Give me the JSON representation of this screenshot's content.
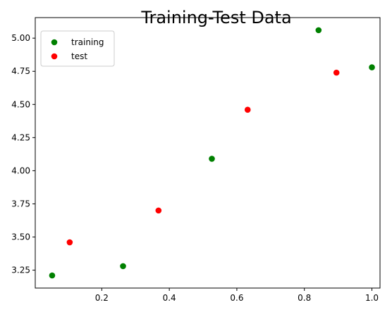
{
  "chart_data": {
    "type": "scatter",
    "title": "Training-Test Data",
    "xlabel": "",
    "ylabel": "",
    "xlim": [
      0.003,
      1.024
    ],
    "ylim": [
      3.115,
      5.155
    ],
    "xticks": [
      0.2,
      0.4,
      0.6,
      0.8,
      1.0
    ],
    "xtick_labels": [
      "0.2",
      "0.4",
      "0.6",
      "0.8",
      "1.0"
    ],
    "yticks": [
      3.25,
      3.5,
      3.75,
      4.0,
      4.25,
      4.5,
      4.75,
      5.0
    ],
    "ytick_labels": [
      "3.25",
      "3.50",
      "3.75",
      "4.00",
      "4.25",
      "4.50",
      "4.75",
      "5.00"
    ],
    "grid": false,
    "legend_position": "top-left",
    "series": [
      {
        "name": "training",
        "color": "#008000",
        "x": [
          0.053,
          0.263,
          0.526,
          0.842,
          1.0
        ],
        "y": [
          3.21,
          3.28,
          4.09,
          5.06,
          4.78
        ]
      },
      {
        "name": "test",
        "color": "#ff0000",
        "x": [
          0.105,
          0.368,
          0.632,
          0.895
        ],
        "y": [
          3.46,
          3.7,
          4.46,
          4.74
        ]
      }
    ]
  }
}
